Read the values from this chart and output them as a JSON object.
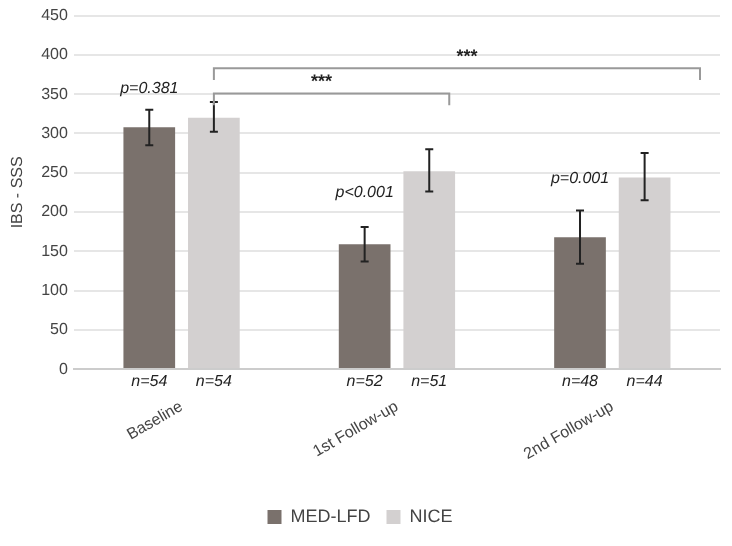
{
  "chart_data": {
    "type": "bar",
    "ylabel": "IBS - SSS",
    "categories": [
      "Baseline",
      "1st Follow-up",
      "2nd Follow-up"
    ],
    "series": [
      {
        "name": "MED-LFD",
        "color": "#7a716c",
        "values": [
          308,
          159,
          168
        ],
        "errors": [
          [
            285,
            330
          ],
          [
            137,
            181
          ],
          [
            134,
            202
          ]
        ]
      },
      {
        "name": "NICE",
        "color": "#d3d0d0",
        "values": [
          320,
          252,
          244
        ],
        "errors": [
          [
            302,
            340
          ],
          [
            226,
            280
          ],
          [
            215,
            275
          ]
        ]
      }
    ],
    "ylim": [
      0,
      450
    ],
    "yticks": [
      0,
      50,
      100,
      150,
      200,
      250,
      300,
      350,
      400,
      450
    ],
    "grid": "y",
    "legend": "bottom",
    "annotations": [
      "p=0.381",
      "p<0.001",
      "p=0.001",
      "***",
      "***",
      "n=54",
      "n=54",
      "n=52",
      "n=51",
      "n=48",
      "n=44"
    ]
  }
}
